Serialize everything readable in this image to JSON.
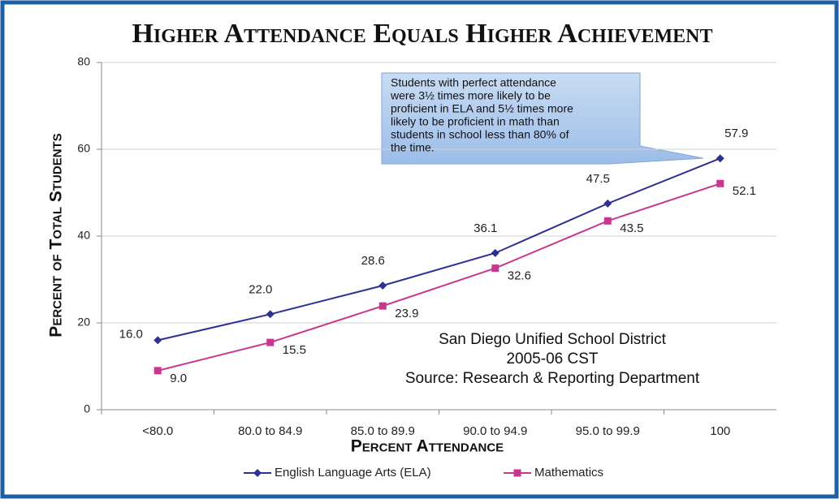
{
  "chart_data": {
    "type": "line",
    "title": "Higher Attendance Equals Higher Achievement",
    "xlabel": "Percent Attendance",
    "ylabel": "Percent of Total Students",
    "categories": [
      "<80.0",
      "80.0 to 84.9",
      "85.0 to 89.9",
      "90.0 to 94.9",
      "95.0 to 99.9",
      "100"
    ],
    "series": [
      {
        "name": "English Language Arts (ELA)",
        "color": "#2e3192",
        "marker": "diamond",
        "values": [
          16.0,
          22.0,
          28.6,
          36.1,
          47.5,
          57.9
        ],
        "value_labels": [
          "16.0",
          "22.0",
          "28.6",
          "36.1",
          "47.5",
          "57.9"
        ]
      },
      {
        "name": "Mathematics",
        "color": "#c8378f",
        "marker": "square",
        "values": [
          9.0,
          15.5,
          23.9,
          32.6,
          43.5,
          52.1
        ],
        "value_labels": [
          "9.0",
          "15.5",
          "23.9",
          "32.6",
          "43.5",
          "52.1"
        ]
      }
    ],
    "ylim": [
      0,
      80
    ],
    "yticks": [
      0,
      20,
      40,
      60,
      80
    ],
    "grid": true,
    "legend": "bottom",
    "annotation": [
      "Students with perfect attendance",
      "were 3½ times more likely to be",
      "proficient in ELA and 5½ times more",
      "likely to be proficient in math than",
      "students in school less than 80% of",
      "the time."
    ],
    "source": [
      "San Diego Unified School District",
      "2005-06 CST",
      "Source: Research & Reporting Department"
    ]
  }
}
